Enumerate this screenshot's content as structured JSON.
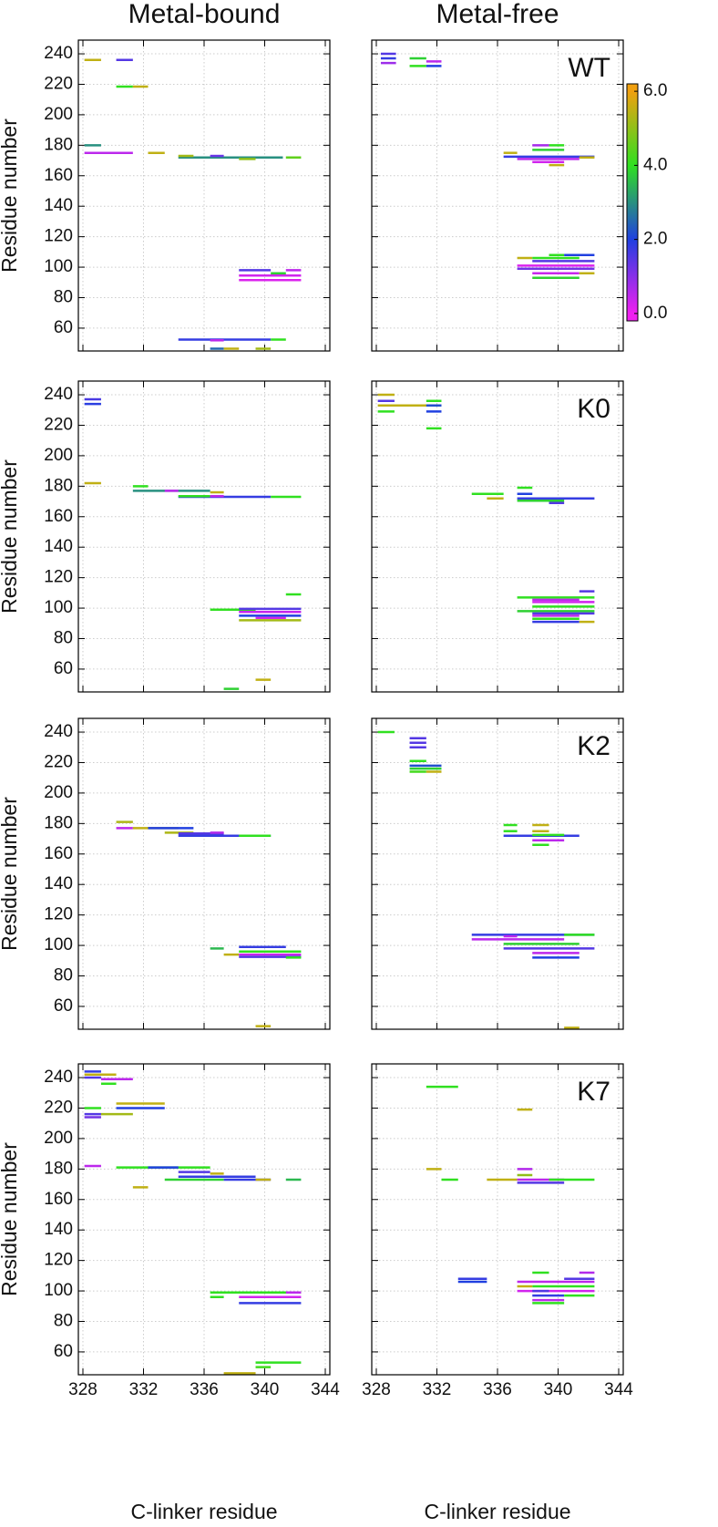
{
  "chart_data": {
    "type": "segment",
    "column_titles": [
      "Metal-bound",
      "Metal-free"
    ],
    "row_labels": [
      "WT",
      "K0",
      "K2",
      "K7"
    ],
    "xlabel": "C-linker residue",
    "ylabel": "Residue number",
    "xlim": [
      327.7,
      344.3
    ],
    "xticks": [
      328,
      332,
      336,
      340,
      344
    ],
    "ylim": [
      45,
      249
    ],
    "yticks": [
      60,
      80,
      100,
      120,
      140,
      160,
      180,
      200,
      220,
      240
    ],
    "grid": true,
    "colorbar": {
      "lim": [
        -0.2,
        6.2
      ],
      "ticks": [
        {
          "value": 0,
          "label": "0.0"
        },
        {
          "value": 2,
          "label": "2.0"
        },
        {
          "value": 4,
          "label": "4.0"
        },
        {
          "value": 6,
          "label": "6.0"
        }
      ],
      "colormap": [
        {
          "value": 0,
          "color": "#f020f0"
        },
        {
          "value": 2,
          "color": "#2040e0"
        },
        {
          "value": 4,
          "color": "#30e020"
        },
        {
          "value": 6,
          "color": "#f0a010"
        }
      ]
    },
    "panels": [
      {
        "segments": [
          [
            328.1,
            329.2,
            236,
            5.5
          ],
          [
            330.2,
            331.3,
            236,
            1.5
          ],
          [
            330.2,
            331.3,
            218.5,
            4
          ],
          [
            331.3,
            332.3,
            218.5,
            5.5
          ],
          [
            328.1,
            329.2,
            180,
            3
          ],
          [
            328.1,
            331.3,
            175,
            0.5
          ],
          [
            332.3,
            333.4,
            175,
            5.5
          ],
          [
            334.3,
            341.2,
            172,
            3
          ],
          [
            336.4,
            337.3,
            173,
            1.3
          ],
          [
            334.3,
            335.3,
            173,
            5.2
          ],
          [
            338.3,
            339.4,
            171,
            5
          ],
          [
            341.4,
            342.4,
            172,
            4.5
          ],
          [
            338.3,
            340.4,
            98,
            1.5
          ],
          [
            341.4,
            342.4,
            98,
            0.5
          ],
          [
            338.3,
            342.4,
            94.5,
            0.3
          ],
          [
            340.4,
            341.4,
            96,
            3.8
          ],
          [
            338.3,
            342.4,
            91.5,
            0.2
          ],
          [
            334.3,
            340.4,
            52.5,
            1.8
          ],
          [
            340.4,
            341.4,
            52.5,
            4
          ],
          [
            336.4,
            337.3,
            52,
            0.5
          ],
          [
            336.4,
            337.3,
            46.5,
            2.5
          ],
          [
            337.3,
            338.3,
            46.5,
            5.5
          ],
          [
            339.4,
            340.4,
            46.5,
            5.2
          ]
        ]
      },
      {
        "segments": [
          [
            328.3,
            329.3,
            240,
            1.5
          ],
          [
            328.3,
            329.3,
            237,
            1.8
          ],
          [
            330.2,
            331.3,
            237,
            3.8
          ],
          [
            331.3,
            332.3,
            235,
            0.5
          ],
          [
            328.3,
            329.3,
            234,
            0.8
          ],
          [
            330.2,
            331.3,
            232,
            4
          ],
          [
            331.3,
            332.3,
            232,
            2
          ],
          [
            336.4,
            337.3,
            175,
            5.5
          ],
          [
            338.3,
            339.4,
            180,
            0.7
          ],
          [
            339.4,
            340.4,
            180,
            4
          ],
          [
            338.3,
            340.4,
            177,
            3.8
          ],
          [
            336.4,
            342.4,
            172.5,
            1.8
          ],
          [
            337.3,
            341.4,
            171,
            0.5
          ],
          [
            341.4,
            342.4,
            172,
            5.5
          ],
          [
            338.3,
            340.4,
            169,
            0.3
          ],
          [
            339.4,
            340.4,
            167,
            5.5
          ],
          [
            339.4,
            340.4,
            108,
            4
          ],
          [
            340.4,
            342.4,
            108,
            2
          ],
          [
            337.3,
            338.3,
            106,
            5.5
          ],
          [
            338.3,
            341.4,
            106,
            4
          ],
          [
            338.3,
            342.4,
            104,
            1.5
          ],
          [
            337.3,
            342.4,
            101,
            0.2
          ],
          [
            337.3,
            342.4,
            99,
            1.2
          ],
          [
            338.3,
            341.4,
            96,
            0.4
          ],
          [
            341.4,
            342.4,
            96,
            5.5
          ],
          [
            338.3,
            341.4,
            93,
            3.8
          ]
        ]
      },
      {
        "segments": [
          [
            328.1,
            329.2,
            237,
            1.6
          ],
          [
            328.1,
            329.2,
            234,
            1.9
          ],
          [
            328.1,
            329.2,
            182,
            5.5
          ],
          [
            331.3,
            332.3,
            180,
            4
          ],
          [
            331.3,
            336.4,
            177,
            3
          ],
          [
            333.4,
            334.3,
            177,
            0.5
          ],
          [
            336.4,
            337.3,
            176,
            5.5
          ],
          [
            334.3,
            340.4,
            173,
            1.8
          ],
          [
            334.3,
            336.4,
            173.5,
            4
          ],
          [
            336.4,
            337.3,
            173.5,
            0.5
          ],
          [
            340.4,
            342.4,
            173,
            4
          ],
          [
            341.4,
            342.4,
            109,
            4
          ],
          [
            336.4,
            339.4,
            99,
            4
          ],
          [
            338.3,
            342.4,
            99.5,
            1.5
          ],
          [
            338.3,
            342.4,
            97.5,
            0.4
          ],
          [
            338.3,
            342.4,
            95,
            2
          ],
          [
            339.4,
            341.4,
            93.5,
            0.3
          ],
          [
            338.3,
            342.4,
            92,
            5.2
          ],
          [
            337.3,
            338.3,
            47,
            3.8
          ],
          [
            339.4,
            340.4,
            53,
            5.5
          ]
        ]
      },
      {
        "segments": [
          [
            328.1,
            329.2,
            240,
            5.5
          ],
          [
            328.1,
            329.2,
            236,
            1.5
          ],
          [
            331.3,
            332.3,
            236,
            4
          ],
          [
            328.1,
            332.3,
            233,
            5.5
          ],
          [
            331.3,
            332.3,
            233,
            2.2
          ],
          [
            328.1,
            329.2,
            229,
            4
          ],
          [
            331.3,
            332.3,
            229,
            2
          ],
          [
            331.3,
            332.3,
            218,
            4
          ],
          [
            334.3,
            336.4,
            175,
            4
          ],
          [
            335.3,
            336.4,
            172,
            5.5
          ],
          [
            337.3,
            338.3,
            179,
            4
          ],
          [
            337.3,
            338.3,
            175,
            2
          ],
          [
            337.3,
            342.4,
            172,
            1.8
          ],
          [
            337.3,
            340.4,
            170.5,
            3.8
          ],
          [
            339.4,
            340.4,
            169,
            1.5
          ],
          [
            341.4,
            342.4,
            111,
            1.5
          ],
          [
            337.3,
            342.4,
            107,
            4
          ],
          [
            338.3,
            341.4,
            105.5,
            0.5
          ],
          [
            338.3,
            342.4,
            104,
            0.3
          ],
          [
            338.3,
            342.4,
            101,
            4
          ],
          [
            337.3,
            342.4,
            98,
            3.8
          ],
          [
            338.3,
            342.4,
            96.5,
            1.5
          ],
          [
            338.3,
            341.4,
            95,
            0.5
          ],
          [
            338.3,
            341.4,
            93,
            4
          ],
          [
            338.3,
            341.4,
            91,
            1.8
          ],
          [
            341.4,
            342.4,
            91,
            5.5
          ]
        ]
      },
      {
        "segments": [
          [
            330.2,
            331.3,
            181,
            5.3
          ],
          [
            330.2,
            331.3,
            177,
            0.5
          ],
          [
            331.3,
            334.3,
            177,
            5.5
          ],
          [
            332.3,
            335.3,
            177,
            2
          ],
          [
            333.4,
            335.3,
            174,
            5.3
          ],
          [
            334.3,
            337.3,
            173.5,
            1.5
          ],
          [
            336.4,
            337.3,
            174,
            0.6
          ],
          [
            334.3,
            340.4,
            172,
            1.8
          ],
          [
            338.3,
            340.4,
            172,
            4
          ],
          [
            336.4,
            337.3,
            98,
            3.5
          ],
          [
            338.3,
            341.4,
            99,
            1.8
          ],
          [
            338.3,
            342.4,
            96,
            4
          ],
          [
            337.3,
            338.3,
            94,
            5.5
          ],
          [
            338.3,
            342.4,
            94,
            0.4
          ],
          [
            338.3,
            342.4,
            92.5,
            1.5
          ],
          [
            341.4,
            342.4,
            92,
            4
          ],
          [
            339.4,
            340.4,
            47,
            5.5
          ]
        ]
      },
      {
        "segments": [
          [
            328.1,
            329.2,
            240,
            4
          ],
          [
            330.2,
            331.3,
            236,
            1.5
          ],
          [
            330.2,
            331.3,
            233,
            1.5
          ],
          [
            330.2,
            331.3,
            230,
            1.5
          ],
          [
            330.2,
            331.3,
            221,
            4
          ],
          [
            330.2,
            332.3,
            218,
            2.2
          ],
          [
            330.2,
            332.3,
            216,
            3.8
          ],
          [
            330.2,
            331.3,
            214,
            4.2
          ],
          [
            331.3,
            332.3,
            214,
            5.5
          ],
          [
            336.4,
            337.3,
            179,
            4
          ],
          [
            338.3,
            339.4,
            179,
            5.5
          ],
          [
            336.4,
            337.3,
            175,
            4
          ],
          [
            338.3,
            339.4,
            175,
            5.5
          ],
          [
            336.4,
            341.4,
            172,
            1.8
          ],
          [
            338.3,
            340.4,
            172.5,
            4
          ],
          [
            338.3,
            340.4,
            169,
            0.5
          ],
          [
            338.3,
            339.4,
            166,
            4
          ],
          [
            334.3,
            342.4,
            107,
            1.8
          ],
          [
            336.4,
            337.3,
            106,
            0.5
          ],
          [
            340.4,
            342.4,
            107,
            4
          ],
          [
            334.3,
            340.4,
            104,
            0.5
          ],
          [
            336.4,
            341.4,
            101,
            3.8
          ],
          [
            336.4,
            342.4,
            98,
            1.5
          ],
          [
            338.3,
            341.4,
            95,
            0.5
          ],
          [
            338.3,
            341.4,
            92,
            2
          ],
          [
            340.4,
            341.4,
            46,
            5.5
          ]
        ]
      },
      {
        "segments": [
          [
            328.1,
            329.2,
            244,
            1.8
          ],
          [
            328.1,
            330.2,
            242,
            5.5
          ],
          [
            328.1,
            329.2,
            240,
            1.5
          ],
          [
            329.2,
            331.3,
            239,
            0.5
          ],
          [
            329.2,
            330.2,
            236,
            4
          ],
          [
            330.2,
            333.4,
            223,
            5.5
          ],
          [
            330.2,
            333.4,
            220,
            2
          ],
          [
            328.1,
            329.2,
            220,
            4
          ],
          [
            328.1,
            329.2,
            216,
            1.5
          ],
          [
            329.2,
            331.3,
            216,
            5.2
          ],
          [
            328.1,
            329.2,
            214,
            1.2
          ],
          [
            328.1,
            329.2,
            182,
            0.5
          ],
          [
            330.2,
            336.4,
            181,
            4
          ],
          [
            332.3,
            334.3,
            181,
            2
          ],
          [
            334.3,
            336.4,
            178,
            1.5
          ],
          [
            336.4,
            337.3,
            177,
            5.5
          ],
          [
            334.3,
            339.4,
            175,
            1.8
          ],
          [
            333.4,
            337.3,
            173,
            3.8
          ],
          [
            337.3,
            340.4,
            173,
            1.8
          ],
          [
            339.4,
            340.4,
            173,
            5.5
          ],
          [
            341.4,
            342.4,
            173,
            3.5
          ],
          [
            331.3,
            332.3,
            168,
            5.5
          ],
          [
            336.4,
            342.4,
            99,
            4
          ],
          [
            341.4,
            342.4,
            99,
            0.5
          ],
          [
            336.4,
            337.3,
            96,
            4
          ],
          [
            338.3,
            342.4,
            96,
            0.3
          ],
          [
            338.3,
            342.4,
            92,
            1.8
          ],
          [
            339.4,
            342.4,
            53,
            4
          ],
          [
            339.4,
            340.4,
            50,
            4.2
          ],
          [
            337.3,
            339.4,
            46,
            5.5
          ]
        ]
      },
      {
        "segments": [
          [
            331.3,
            333.4,
            234,
            4
          ],
          [
            337.3,
            338.3,
            219,
            5.5
          ],
          [
            331.3,
            332.3,
            180,
            5.5
          ],
          [
            337.3,
            338.3,
            180,
            0.6
          ],
          [
            337.3,
            338.3,
            176,
            5
          ],
          [
            332.3,
            333.4,
            173,
            4
          ],
          [
            335.3,
            337.3,
            173,
            5.5
          ],
          [
            337.3,
            340.4,
            173,
            0.5
          ],
          [
            339.4,
            342.4,
            173,
            4
          ],
          [
            337.3,
            340.4,
            171,
            1.5
          ],
          [
            338.3,
            339.4,
            112,
            4
          ],
          [
            341.4,
            342.4,
            112,
            0.6
          ],
          [
            333.4,
            335.3,
            108,
            1.8
          ],
          [
            340.4,
            342.4,
            108,
            1.5
          ],
          [
            333.4,
            335.3,
            106,
            2
          ],
          [
            337.3,
            342.4,
            106,
            0.5
          ],
          [
            338.3,
            342.4,
            103,
            4
          ],
          [
            337.3,
            338.3,
            103,
            5.5
          ],
          [
            337.3,
            342.4,
            100,
            0.3
          ],
          [
            338.3,
            339.4,
            100,
            1.5
          ],
          [
            338.3,
            340.4,
            97,
            1.8
          ],
          [
            340.4,
            342.4,
            97,
            4
          ],
          [
            338.3,
            340.4,
            94,
            0.5
          ],
          [
            338.3,
            340.4,
            92,
            4
          ]
        ]
      }
    ]
  }
}
